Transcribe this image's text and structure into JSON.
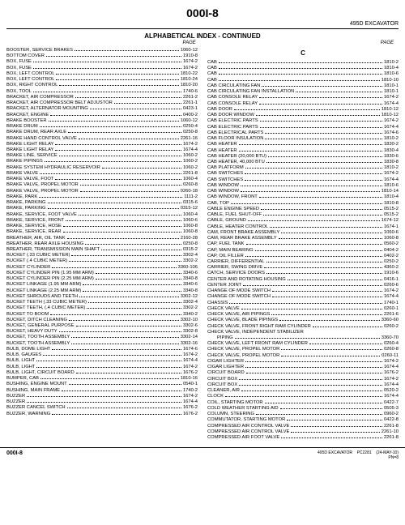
{
  "header": {
    "pageNumber": "000I-8",
    "model": "495D  EXCAVATOR",
    "subtitle": "ALPHABETICAL INDEX - CONTINUED",
    "pageLabel": "PAGE"
  },
  "footer": {
    "left": "000I-8",
    "model": "495D EXCAVATOR",
    "pc": "PC2281",
    "date": "(24-MAY-10)",
    "pn": "PN=8"
  },
  "sectionLetter": "C",
  "leftColumn": [
    {
      "l": "BOOSTER, SERVICE BRAKES",
      "r": "1060-12"
    },
    {
      "l": "BOTTOM COVER",
      "r": "1910-8"
    },
    {
      "l": "BOX, FUSE",
      "r": "1674-2"
    },
    {
      "l": "BOX, FUSE",
      "r": "1674-2"
    },
    {
      "l": "BOX, LEFT CONTROL",
      "r": "1810-22"
    },
    {
      "l": "BOX, LEFT CONTROL",
      "r": "1810-24"
    },
    {
      "l": "BOX, RIGHT CONTROL",
      "r": "1810-20"
    },
    {
      "l": "BOX, TOOL",
      "r": "1740-6"
    },
    {
      "l": "BRACKET, AIR COMPRESSOR",
      "r": "2261-2"
    },
    {
      "l": "BRACKET, AIR COMPRESSOR BELT ADJUSTOR",
      "r": "2261-1"
    },
    {
      "l": "BRACKET, ALTERNATOR MOUNTING",
      "r": "0423-1"
    },
    {
      "l": "BRACKET, ENGINE",
      "r": "0400-2"
    },
    {
      "l": "BRAKE BOOSTER",
      "r": "1060-12"
    },
    {
      "l": "BRAKE DRUM",
      "r": "0250-4"
    },
    {
      "l": "BRAKE DRUM, REAR AXLE",
      "r": "0250-8"
    },
    {
      "l": "BRAKE HAND CONTROL VALVE",
      "r": "2261-16"
    },
    {
      "l": "BRAKE LIGHT RELAY",
      "r": "1674-2"
    },
    {
      "l": "BRAKE LIGHT RELAY",
      "r": "1674-4"
    },
    {
      "l": "BRAKE LINE, SERVICE",
      "r": "1060-2"
    },
    {
      "l": "BRAKE PIPINGS",
      "r": "1060-2"
    },
    {
      "l": "BRAKE SYSTEM HYDRAULIC RESERVOIR",
      "r": "1060-2"
    },
    {
      "l": "BRAKE VALVE",
      "r": "2261-8"
    },
    {
      "l": "BRAKE VALVE, FOOT",
      "r": "1060-4"
    },
    {
      "l": "BRAKE VALVE, PROPEL MOTOR",
      "r": "0260-8"
    },
    {
      "l": "BRAKE VALVE, PROPEL MOTOR",
      "r": "0260-18"
    },
    {
      "l": "BRAKE, PARK",
      "r": "1111-2"
    },
    {
      "l": "BRAKE, PARKING",
      "r": "0315-6"
    },
    {
      "l": "BRAKE, PARKING",
      "r": "0315-12"
    },
    {
      "l": "BRAKE, SERVICE, FOOT VALVE",
      "r": "1060-4"
    },
    {
      "l": "BRAKE, SERVICE, FRONT",
      "r": "1060-6"
    },
    {
      "l": "BRAKE, SERVICE, HOSE",
      "r": "1060-8"
    },
    {
      "l": "BRAKE, SERVICE, REAR",
      "r": "1060-8"
    },
    {
      "l": "BREATHER, AIR, OIL TANK",
      "r": "2160-28"
    },
    {
      "l": "BREATHER, REAR AXLE HOUSING",
      "r": "0250-8"
    },
    {
      "l": "BREATHER, TRANSMISSION MAIN SHAFT",
      "r": "0315-2"
    },
    {
      "l": "BUCKET (.33 CUBIC METER)",
      "r": "3302-4"
    },
    {
      "l": "BUCKET (.4 CUBIC METER)",
      "r": "3302-2"
    },
    {
      "l": "BUCKET CYLINDER",
      "r": "3360-106"
    },
    {
      "l": "BUCKET CYLINDER PIN (1.95 MM ARM)",
      "r": "3340-6"
    },
    {
      "l": "BUCKET CYLINDER PIN (2.25 MM ARM)",
      "r": "3340-8"
    },
    {
      "l": "BUCKET LINKAGE (1.95 MM ARM)",
      "r": "3340-6"
    },
    {
      "l": "BUCKET LINKAGE (2.25 MM ARM)",
      "r": "3340-8"
    },
    {
      "l": "BUCKET SHROUDS AND TEETH",
      "r": "3302-12"
    },
    {
      "l": "BUCKET TEETH (.33 CUBIC METER)",
      "r": "3302-4"
    },
    {
      "l": "BUCKET TEETH, (.4 CUBIC METER)",
      "r": "3302-2"
    },
    {
      "l": "BUCKET TO BOOM",
      "r": "3340-2"
    },
    {
      "l": "BUCKET, DITCH CLEANING",
      "r": "3302-10"
    },
    {
      "l": "BUCKET, GENERAL PURPOSE",
      "r": "3302-6"
    },
    {
      "l": "BUCKET, HEAVY DUTY",
      "r": "3302-8"
    },
    {
      "l": "BUCKET, TOOTH ASSEMBLY",
      "r": "3302-14"
    },
    {
      "l": "BUCKET, TOOTH ASSEMBLY",
      "r": "3302-16"
    },
    {
      "l": "BULB, DOME LIGHT",
      "r": "1674-6"
    },
    {
      "l": "BULB, GAUGES",
      "r": "1674-2"
    },
    {
      "l": "BULB, LIGHT",
      "r": "1674-4"
    },
    {
      "l": "BULB, LIGHT",
      "r": "1674-2"
    },
    {
      "l": "BULB, LIGHT, CIRCUIT BOARD",
      "r": "1676-2"
    },
    {
      "l": "BUMPER, CAB",
      "r": "1810-16"
    },
    {
      "l": "BUSHING, ENGINE MOUNT",
      "r": "0540-1"
    },
    {
      "l": "BUSHING, MAIN FRAME",
      "r": "1740-2"
    },
    {
      "l": "BUZZER",
      "r": "1674-2"
    },
    {
      "l": "BUZZER",
      "r": "1674-4"
    },
    {
      "l": "BUZZER CANCEL SWITCH",
      "r": "1676-2"
    },
    {
      "l": "BUZZER, WARNING",
      "r": "1676-2"
    }
  ],
  "rightColumn": [
    {
      "l": "CAB",
      "r": "1810-2"
    },
    {
      "l": "CAB",
      "r": "1810-4"
    },
    {
      "l": "CAB",
      "r": "1810-6"
    },
    {
      "l": "CAB",
      "r": "1810-10"
    },
    {
      "l": "CAB CIRCULATING FAN",
      "r": "1810-1"
    },
    {
      "l": "CAB CIRCULATING FAN INSTALLATION",
      "r": "1810-1"
    },
    {
      "l": "CAB CONSOLE RELAY",
      "r": "1674-2"
    },
    {
      "l": "CAB CONSOLE RELAY",
      "r": "1674-4"
    },
    {
      "l": "CAB DOOR",
      "r": "1810-12"
    },
    {
      "l": "CAB DOOR WINDOW",
      "r": "1810-12"
    },
    {
      "l": "CAB ELECTRIC PARTS",
      "r": "1674-2"
    },
    {
      "l": "CAB ELECTRIC PARTS",
      "r": "1674-4"
    },
    {
      "l": "CAB ELECTRICAL PARTS",
      "r": "1674-6"
    },
    {
      "l": "CAB FLOOR INSULATION",
      "r": "1810-2"
    },
    {
      "l": "CAB HEATER",
      "r": "1830-2"
    },
    {
      "l": "CAB HEATER",
      "r": "1830-4"
    },
    {
      "l": "CAB HEATER (20,000 BTU)",
      "r": "1830-6"
    },
    {
      "l": "CAB HEATER, 40,000 BTU",
      "r": "1830-8"
    },
    {
      "l": "CAB PLATFORM",
      "r": "1810-2"
    },
    {
      "l": "CAB SWITCHES",
      "r": "1674-2"
    },
    {
      "l": "CAB SWITCHES",
      "r": "1674-4"
    },
    {
      "l": "CAB WINDOW",
      "r": "1810-6"
    },
    {
      "l": "CAB WINDOW",
      "r": "1810-14"
    },
    {
      "l": "CAB WINDOW, FRONT",
      "r": "1810-4"
    },
    {
      "l": "CAB, TOP",
      "r": "1810-8"
    },
    {
      "l": "CABLE ENGINE SPEED",
      "r": "0515-2"
    },
    {
      "l": "CABLE, FUEL SHUT-OFF",
      "r": "0515-2"
    },
    {
      "l": "CABLE, GROUND",
      "r": "1674-12"
    },
    {
      "l": "CABLE, HEATER CONTROL",
      "r": "1674-1"
    },
    {
      "l": "CAM, FRONT BRAKE ASSEMBLY",
      "r": "1060-6"
    },
    {
      "l": "CAM, REAR BRAKE ASSEMBLY",
      "r": "1060-8"
    },
    {
      "l": "CAP, FUEL TANK",
      "r": "0560-2"
    },
    {
      "l": "CAP, MAIN BEARING",
      "r": "0404-2"
    },
    {
      "l": "CAP, OIL FILLER",
      "r": "0402-2"
    },
    {
      "l": "CARRIER, DIFFERENTIAL",
      "r": "0250-2"
    },
    {
      "l": "CARRIER, SWING DRIVE",
      "r": "4360-2"
    },
    {
      "l": "CATCH, SERVICE DOORS",
      "r": "1910-6"
    },
    {
      "l": "CENTER AND ROTATING HOUSING",
      "r": "0416-1"
    },
    {
      "l": "CENTER JOINT",
      "r": "0260-6"
    },
    {
      "l": "CHANGE OF MODE SWITCH",
      "r": "1674-2"
    },
    {
      "l": "CHANGE OF MODE SWITCH",
      "r": "1674-4"
    },
    {
      "l": "CHASSIS",
      "r": "1740-1"
    },
    {
      "l": "CHECK VALVE",
      "r": "0260-1"
    },
    {
      "l": "CHECK VALVE, AIR PIPINGS",
      "r": "2261-6"
    },
    {
      "l": "CHECK VALVE, BLADE PIPINGS",
      "r": "3360-60"
    },
    {
      "l": "CHECK VALVE, FRONT RIGHT RAM CYLINDER",
      "r": "0260-2"
    },
    {
      "l": "CHECK VALVE, INDEPENDENT STABILIZER",
      "r": ""
    },
    {
      "l": "PIPING",
      "r": "3360-70",
      "sub": true
    },
    {
      "l": "CHECK VALVE, LEFT FRONT RAM CYLINDER",
      "r": "0260-4"
    },
    {
      "l": "CHECK VALVE, PROPEL MOTOR",
      "r": "0260-8"
    },
    {
      "l": "CHECK VALVE, PROPEL MOTOR",
      "r": "0260-11"
    },
    {
      "l": "CIGAR LIGHTER",
      "r": "1674-2"
    },
    {
      "l": "CIGAR LIGHTER",
      "r": "1674-4"
    },
    {
      "l": "CIRCUIT BOARD",
      "r": "1676-2"
    },
    {
      "l": "CIRCUIT BOX",
      "r": "1674-2"
    },
    {
      "l": "CIRCUIT BOX",
      "r": "1674-4"
    },
    {
      "l": "CLEANER, AIR",
      "r": "0520-2"
    },
    {
      "l": "CLOCK",
      "r": "1674-4"
    },
    {
      "l": "COIL, STARTING MOTOR",
      "r": "0422-7"
    },
    {
      "l": "COLD WEATHER STARTING AID",
      "r": "0505-3"
    },
    {
      "l": "COLUMN, STEERING",
      "r": "0960-2"
    },
    {
      "l": "COMMUTATOR, STARTING MOTOR",
      "r": "0422-8"
    },
    {
      "l": "COMPRESSED AIR CONTROL VALVE",
      "r": "2261-8"
    },
    {
      "l": "COMPRESSED AIR CONTROL VALVE",
      "r": "2261-10"
    },
    {
      "l": "COMPRESSED AIR FOOT VALVE",
      "r": "2261-8"
    }
  ]
}
